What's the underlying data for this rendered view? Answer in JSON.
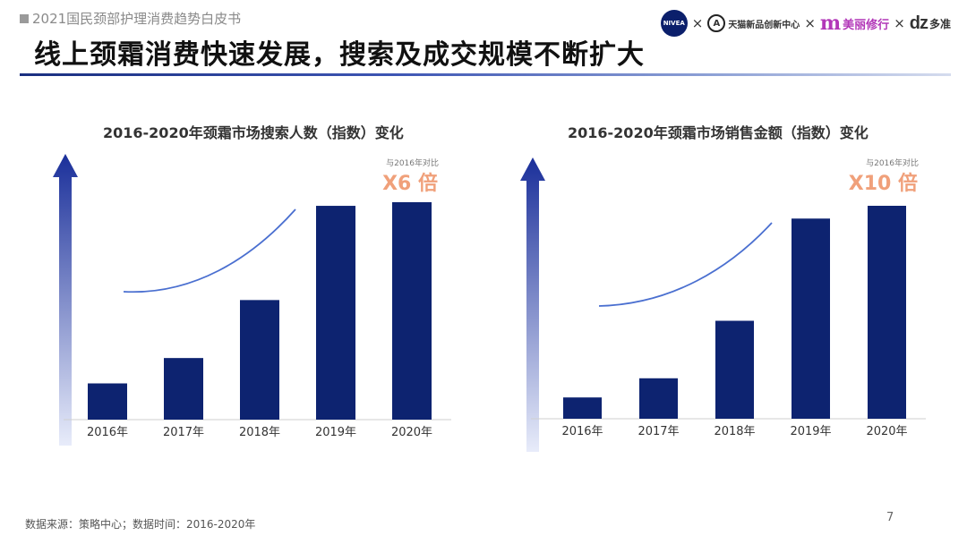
{
  "header": {
    "report_title": "2021国民颈部护理消费趋势白皮书",
    "headline": "线上颈霜消费快速发展，搜索及成交规模不断扩大"
  },
  "logos": {
    "nivea": "NIVEA",
    "tmall": "天猫新品创新中心",
    "meili": "美丽修行",
    "dz_mark": "dz",
    "dz": "多准",
    "separator": "×"
  },
  "footer": {
    "source": "数据来源：策略中心；数据时间：2016-2020年",
    "page_number": "7"
  },
  "colors": {
    "bar": "#0d2370",
    "trend": "#4a6fd0",
    "multiplier": "#f0a07a",
    "arrow_top": "#1a2f9a",
    "arrow_bottom": "#e8ecfa"
  },
  "chart_data": [
    {
      "type": "bar",
      "title": "2016-2020年颈霜市场搜索人数（指数）变化",
      "categories": [
        "2016年",
        "2017年",
        "2018年",
        "2019年",
        "2020年"
      ],
      "values": [
        1.0,
        1.7,
        3.3,
        5.9,
        6.0
      ],
      "annotation_note": "与2016年对比",
      "annotation_value": "X6 倍",
      "ylim": [
        0,
        6.5
      ],
      "grid": false
    },
    {
      "type": "bar",
      "title": "2016-2020年颈霜市场销售金额（指数）变化",
      "categories": [
        "2016年",
        "2017年",
        "2018年",
        "2019年",
        "2020年"
      ],
      "values": [
        1.0,
        1.9,
        4.6,
        9.4,
        10.0
      ],
      "annotation_note": "与2016年对比",
      "annotation_value": "X10 倍",
      "ylim": [
        0,
        10.5
      ],
      "grid": false
    }
  ]
}
